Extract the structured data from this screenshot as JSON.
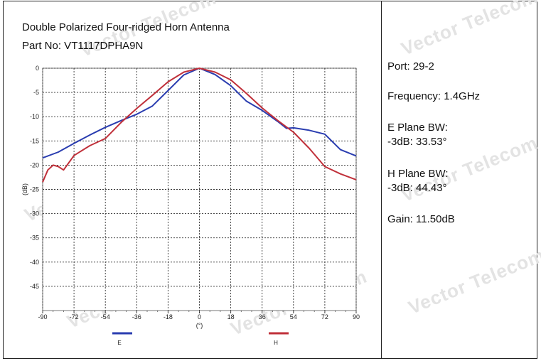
{
  "header": {
    "title": "Double Polarized Four-ridged Horn Antenna",
    "part_no": "Part No: VT1117DPHA9N"
  },
  "info": {
    "port": "Port: 29-2",
    "frequency": "Frequency: 1.4GHz",
    "e_plane_label": "E Plane BW:",
    "e_plane_value": "-3dB: 33.53°",
    "h_plane_label": "H Plane BW:",
    "h_plane_value": "-3dB: 44.43°",
    "gain": "Gain: 11.50dB"
  },
  "watermark": "Vector Telecom",
  "chart_data": {
    "type": "line",
    "xlabel": "(°)",
    "ylabel": "(dB)",
    "xlim": [
      -90,
      90
    ],
    "ylim": [
      -50,
      0
    ],
    "x_ticks": [
      -90,
      -72,
      -54,
      -36,
      -18,
      0,
      18,
      36,
      54,
      72,
      90
    ],
    "y_ticks": [
      0,
      -5,
      -10,
      -15,
      -20,
      -25,
      -30,
      -35,
      -40,
      -45
    ],
    "grid": true,
    "legend_position": "bottom",
    "series": [
      {
        "name": "E",
        "color": "#2a3db0",
        "x": [
          -90,
          -81,
          -72,
          -63,
          -54,
          -45,
          -36,
          -27,
          -18,
          -9,
          0,
          9,
          18,
          27,
          36,
          45,
          50,
          54,
          63,
          72,
          81,
          90
        ],
        "y": [
          -18.5,
          -17.3,
          -15.5,
          -13.8,
          -12.2,
          -10.8,
          -9.5,
          -7.8,
          -4.6,
          -1.4,
          0,
          -1.3,
          -3.6,
          -6.8,
          -8.7,
          -11,
          -12.4,
          -12.3,
          -12.8,
          -13.6,
          -16.8,
          -18.1
        ]
      },
      {
        "name": "H",
        "color": "#c0303a",
        "x": [
          -90,
          -87,
          -84,
          -81,
          -78,
          -75,
          -72,
          -63,
          -54,
          -45,
          -36,
          -27,
          -18,
          -9,
          0,
          9,
          18,
          27,
          36,
          45,
          54,
          63,
          72,
          81,
          90
        ],
        "y": [
          -23.5,
          -21,
          -20,
          -20.3,
          -21,
          -19.5,
          -18,
          -16,
          -14.5,
          -11.2,
          -8.3,
          -5.6,
          -2.8,
          -0.8,
          0,
          -0.8,
          -2.4,
          -5.2,
          -8.2,
          -10.8,
          -13.2,
          -16.5,
          -20.3,
          -21.8,
          -23
        ]
      }
    ]
  }
}
